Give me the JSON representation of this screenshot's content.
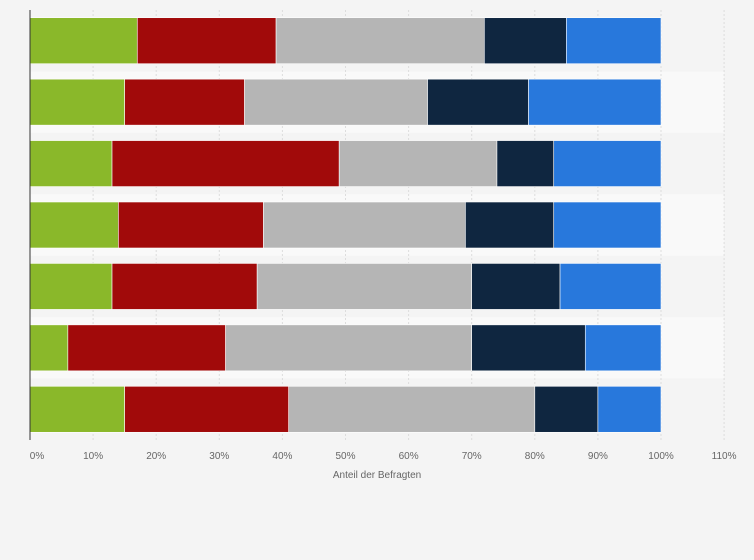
{
  "chart_data": {
    "type": "bar",
    "orientation": "horizontal",
    "stacked": true,
    "categories": [
      "",
      "",
      "",
      "",
      "",
      "",
      ""
    ],
    "series": [
      {
        "color": "#8ab82a",
        "values": [
          17,
          15,
          13,
          14,
          13,
          6,
          15
        ]
      },
      {
        "color": "#a10a0a",
        "values": [
          22,
          19,
          36,
          23,
          23,
          25,
          26
        ]
      },
      {
        "color": "#b5b5b5",
        "values": [
          33,
          29,
          25,
          32,
          34,
          39,
          39
        ]
      },
      {
        "color": "#0f2640",
        "values": [
          13,
          16,
          9,
          14,
          14,
          18,
          10
        ]
      },
      {
        "color": "#2878dc",
        "values": [
          15,
          21,
          17,
          17,
          16,
          12,
          10
        ]
      }
    ],
    "xlim": [
      0,
      110
    ],
    "xticks": [
      0,
      10,
      20,
      30,
      40,
      50,
      60,
      70,
      80,
      90,
      100,
      110
    ],
    "xtick_labels": [
      "0%",
      "10%",
      "20%",
      "30%",
      "40%",
      "50%",
      "60%",
      "70%",
      "80%",
      "90%",
      "100%",
      "110%"
    ],
    "xlabel": "Anteil der Befragten",
    "grid": "vertical-dashed",
    "legend": "none"
  },
  "colors": {
    "background": "#f4f4f4",
    "band_alt": "#f9f9f9",
    "grid": "#dddddd",
    "axis": "#333333",
    "text": "#666666"
  }
}
